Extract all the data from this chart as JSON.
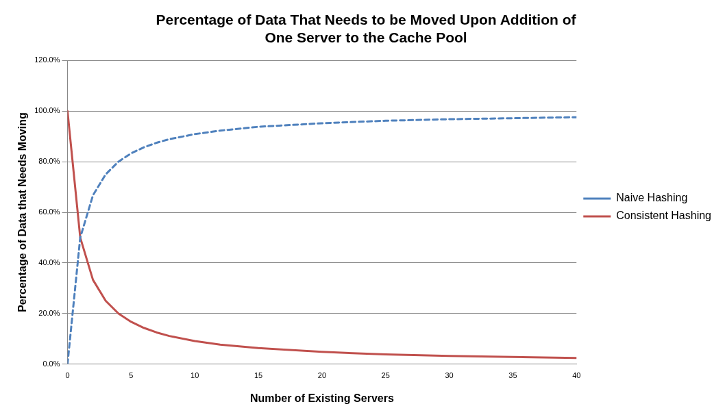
{
  "chart_data": {
    "type": "line",
    "title": "Percentage of Data That Needs to be Moved Upon Addition of\nOne Server to the Cache Pool",
    "xlabel": "Number of Existing Servers",
    "ylabel": "Percentage of Data that Needs Moving",
    "x": [
      0,
      1,
      2,
      3,
      4,
      5,
      6,
      7,
      8,
      10,
      12,
      15,
      20,
      25,
      30,
      35,
      40
    ],
    "series": [
      {
        "name": "Naive Hashing",
        "color": "#4f81bd",
        "line_style": "dashed",
        "values": [
          0,
          50,
          66.7,
          75,
          80,
          83.3,
          85.7,
          87.5,
          88.9,
          90.9,
          92.3,
          93.8,
          95.2,
          96.2,
          96.8,
          97.2,
          97.6
        ]
      },
      {
        "name": "Consistent Hashing",
        "color": "#c0504d",
        "line_style": "solid",
        "values": [
          100,
          50,
          33.3,
          25,
          20,
          16.7,
          14.3,
          12.5,
          11.1,
          9.1,
          7.7,
          6.3,
          4.8,
          3.8,
          3.2,
          2.8,
          2.4
        ]
      }
    ],
    "xlim": [
      0,
      40
    ],
    "xticks": [
      0,
      5,
      10,
      15,
      20,
      25,
      30,
      35,
      40
    ],
    "ylim": [
      0,
      120
    ],
    "yticks": [
      {
        "value": 0,
        "label": "0.0%"
      },
      {
        "value": 20,
        "label": "20.0%"
      },
      {
        "value": 40,
        "label": "40.0%"
      },
      {
        "value": 60,
        "label": "60.0%"
      },
      {
        "value": 80,
        "label": "80.0%"
      },
      {
        "value": 100,
        "label": "100.0%"
      },
      {
        "value": 120,
        "label": "120.0%"
      }
    ],
    "grid": "y",
    "legend": "right",
    "marker": "none"
  }
}
